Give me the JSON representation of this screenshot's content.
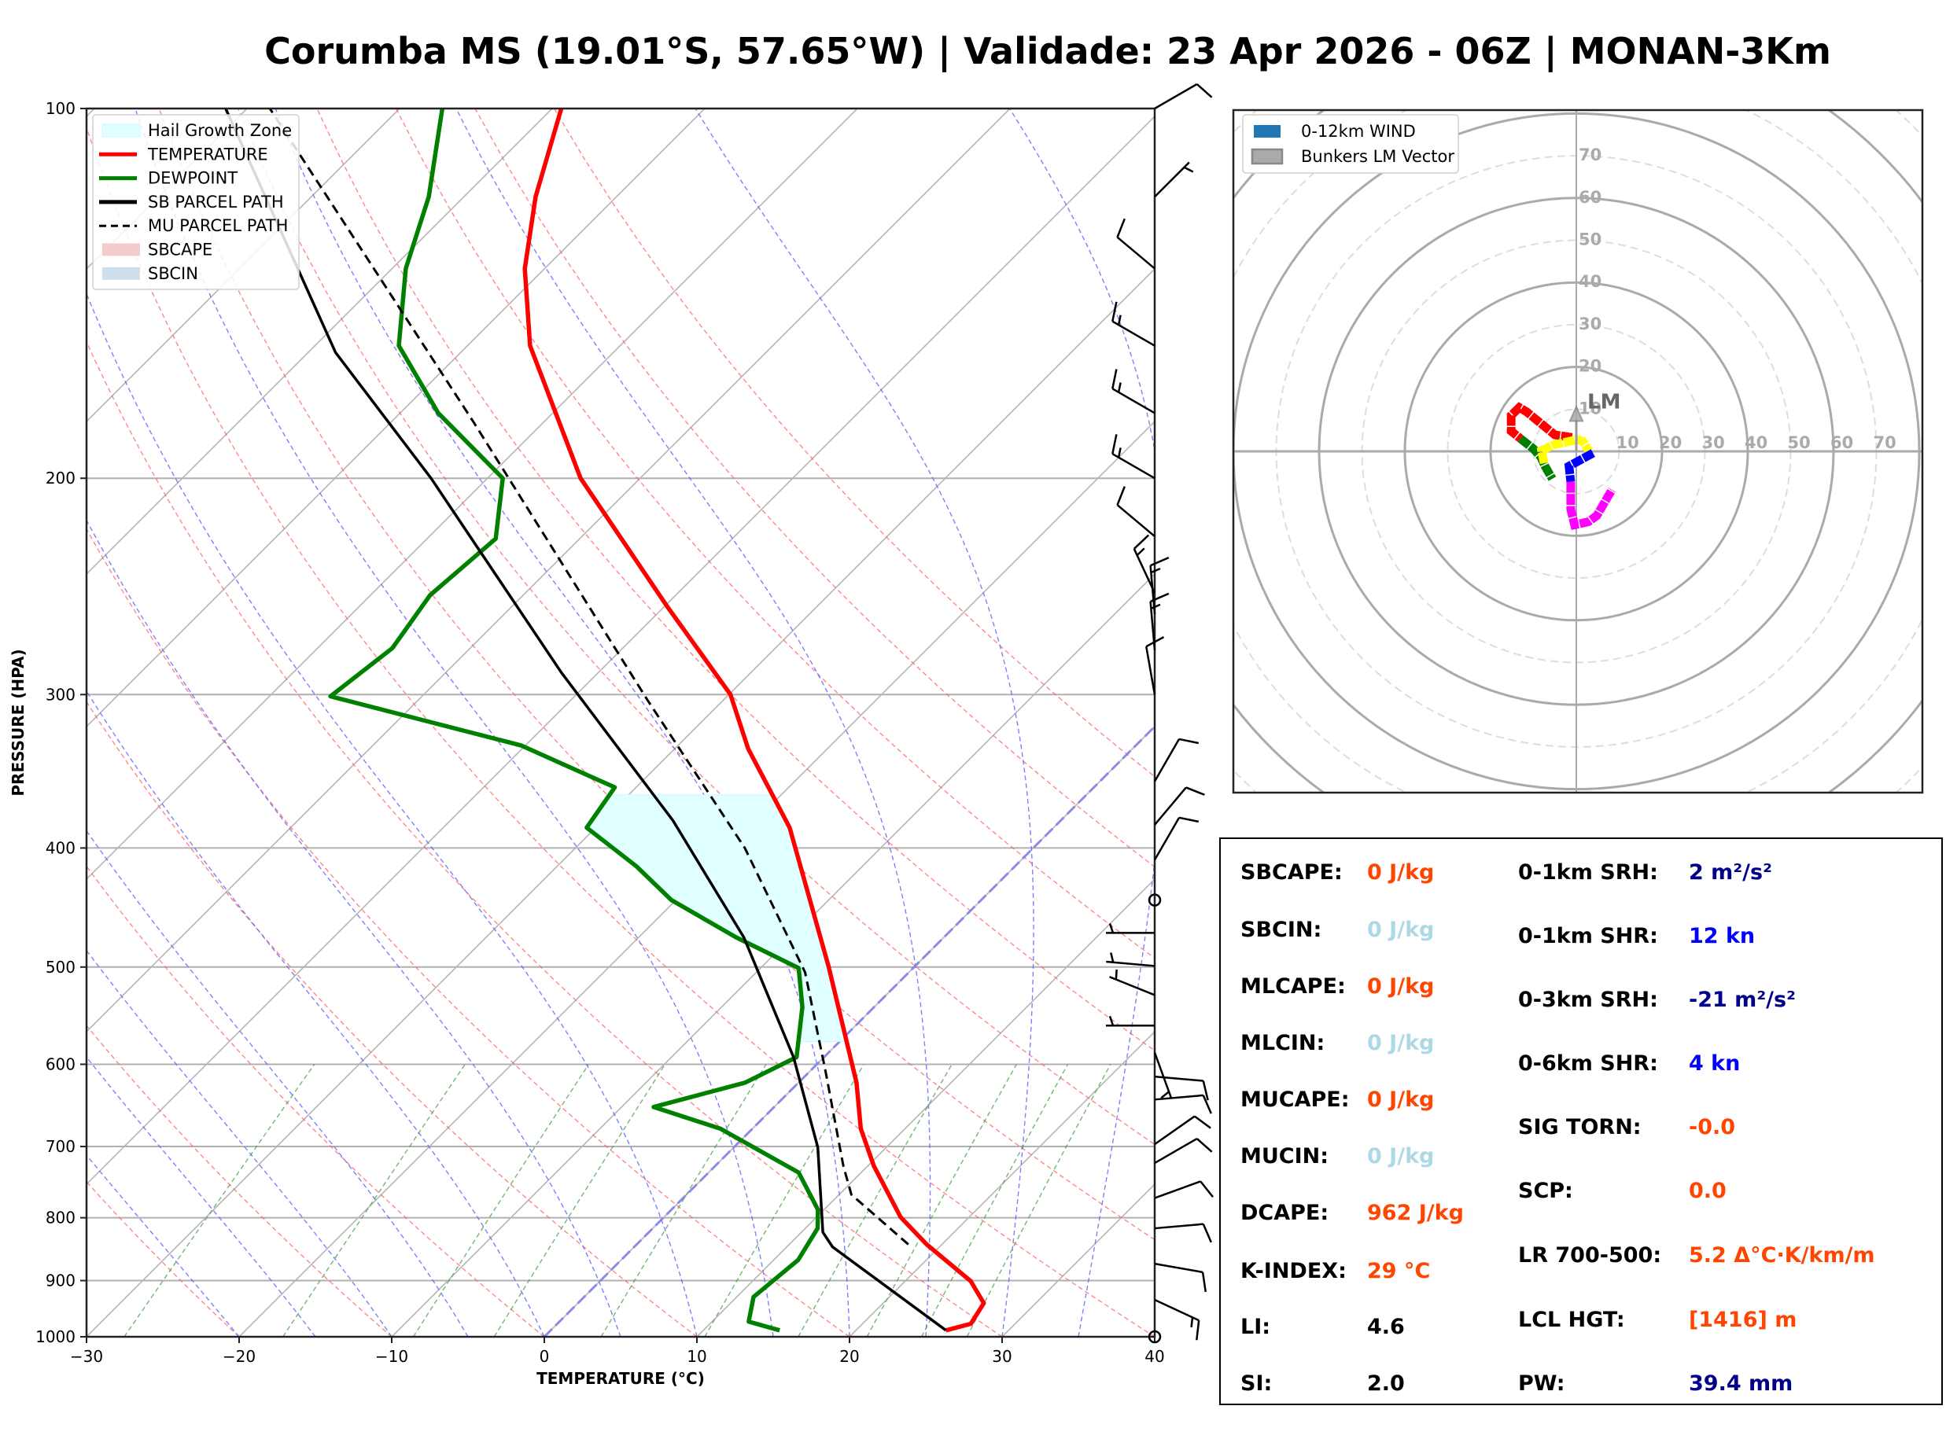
{
  "title": "Corumba MS (19.01°S, 57.65°W) | Validade: 23 Apr 2026 - 06Z | MONAN-3Km",
  "chart_data": [
    {
      "type": "line",
      "name": "skew-t",
      "xlabel": "TEMPERATURE (°C)",
      "ylabel": "PRESSURE (HPA)",
      "xlim": [
        -30,
        40
      ],
      "ylim": [
        1000,
        100
      ],
      "yscale": "log",
      "xticks": [
        -30,
        -20,
        -10,
        0,
        10,
        20,
        30,
        40
      ],
      "xtick_labels": [
        "−30",
        "−20",
        "−10",
        "0",
        "10",
        "20",
        "30",
        "40"
      ],
      "yticks": [
        1000,
        900,
        800,
        700,
        600,
        500,
        400,
        300,
        200,
        100
      ],
      "ytick_labels": [
        "1000",
        "900",
        "800",
        "700",
        "600",
        "500",
        "400",
        "300",
        "200",
        "100"
      ],
      "grid": true,
      "legend_position": "top-left",
      "legend": [
        {
          "label": "Hail Growth Zone",
          "kind": "patch",
          "color": "#e0ffff"
        },
        {
          "label": "TEMPERATURE",
          "kind": "line",
          "color": "#ff0000"
        },
        {
          "label": "DEWPOINT",
          "kind": "line",
          "color": "#008000"
        },
        {
          "label": "SB PARCEL PATH",
          "kind": "line",
          "color": "#000000"
        },
        {
          "label": "MU PARCEL PATH",
          "kind": "dashed",
          "color": "#000000"
        },
        {
          "label": "SBCAPE",
          "kind": "patch",
          "color": "#f4cccc"
        },
        {
          "label": "SBCIN",
          "kind": "patch",
          "color": "#cfe0ec"
        }
      ],
      "series": [
        {
          "name": "TEMPERATURE",
          "color": "#ff0000",
          "p": [
            988,
            976,
            939,
            901,
            841,
            799,
            726,
            677,
            621,
            500,
            385,
            332,
            300,
            254,
            200,
            156,
            135,
            118,
            100
          ],
          "t": [
            25.9,
            27.1,
            26.6,
            24.3,
            19.0,
            15.5,
            10.4,
            7.1,
            3.8,
            -5.6,
            -17.3,
            -25.2,
            -29.9,
            -39.9,
            -53.9,
            -65.9,
            -71.3,
            -75.3,
            -79.4
          ]
        },
        {
          "name": "DEWPOINT",
          "color": "#008000",
          "p": [
            988,
            972,
            928,
            866,
            816,
            788,
            735,
            677,
            650,
            621,
            592,
            539,
            501,
            473,
            441,
            414,
            385,
            357,
            330,
            301,
            275,
            249,
            224,
            200,
            177,
            156,
            135,
            118,
            100
          ],
          "t": [
            15.0,
            12.4,
            11.1,
            11.6,
            10.8,
            9.6,
            5.9,
            -2.1,
            -7.9,
            -3.5,
            -1.8,
            -4.7,
            -7.5,
            -13.6,
            -20.3,
            -24.8,
            -30.6,
            -31.4,
            -40.3,
            -56.0,
            -55.1,
            -56.1,
            -55.5,
            -59.0,
            -67.5,
            -74.5,
            -79.1,
            -82.3,
            -87.2
          ]
        },
        {
          "name": "SB PARCEL PATH",
          "color": "#000000",
          "p": [
            988,
            845,
            822,
            701,
            592,
            473,
            380,
            288,
            200,
            158,
            100
          ],
          "t": [
            25.9,
            13.0,
            11.4,
            5.5,
            -2.0,
            -13.1,
            -25.4,
            -42.4,
            -63.7,
            -78.2,
            -101.4
          ]
        },
        {
          "name": "MU PARCEL PATH",
          "color": "#000000",
          "dashed": true,
          "p": [
            841,
            766,
            726,
            609,
            505,
            400,
            303,
            180,
            100
          ],
          "t": [
            17.8,
            10.8,
            8.4,
            1.1,
            -6.8,
            -18.9,
            -35.0,
            -64.6,
            -98.5
          ]
        }
      ],
      "hail_growth_zone": {
        "p_top": 362,
        "p_bottom": 575
      },
      "wind_barbs": [
        {
          "p": 100,
          "dir": 60,
          "spd": 10
        },
        {
          "p": 118,
          "dir": 45,
          "spd": 5
        },
        {
          "p": 135,
          "dir": 310,
          "spd": 10
        },
        {
          "p": 156,
          "dir": 300,
          "spd": 15
        },
        {
          "p": 177,
          "dir": 300,
          "spd": 15
        },
        {
          "p": 200,
          "dir": 300,
          "spd": 15
        },
        {
          "p": 223,
          "dir": 310,
          "spd": 10
        },
        {
          "p": 248,
          "dir": 335,
          "spd": 15
        },
        {
          "p": 258,
          "dir": 355,
          "spd": 15
        },
        {
          "p": 276,
          "dir": 355,
          "spd": 15
        },
        {
          "p": 300,
          "dir": 350,
          "spd": 10
        },
        {
          "p": 353,
          "dir": 30,
          "spd": 10
        },
        {
          "p": 383,
          "dir": 40,
          "spd": 10
        },
        {
          "p": 409,
          "dir": 30,
          "spd": 10
        },
        {
          "p": 441,
          "dir": 0,
          "spd": 0
        },
        {
          "p": 469,
          "dir": 270,
          "spd": 5
        },
        {
          "p": 499,
          "dir": 275,
          "spd": 5
        },
        {
          "p": 527,
          "dir": 292,
          "spd": 5
        },
        {
          "p": 558,
          "dir": 270,
          "spd": 5
        },
        {
          "p": 587,
          "dir": 160,
          "spd": 5
        },
        {
          "p": 614,
          "dir": 95,
          "spd": 10
        },
        {
          "p": 641,
          "dir": 85,
          "spd": 10
        },
        {
          "p": 697,
          "dir": 55,
          "spd": 10
        },
        {
          "p": 722,
          "dir": 60,
          "spd": 10
        },
        {
          "p": 771,
          "dir": 70,
          "spd": 10
        },
        {
          "p": 816,
          "dir": 85,
          "spd": 10
        },
        {
          "p": 872,
          "dir": 100,
          "spd": 10
        },
        {
          "p": 933,
          "dir": 115,
          "spd": 15
        },
        {
          "p": 1000,
          "dir": 0,
          "spd": 0
        }
      ]
    },
    {
      "type": "scatter",
      "name": "hodograph",
      "legend_position": "top-left",
      "legend": [
        {
          "label": "0-12km WIND",
          "color": "#1f77b4"
        },
        {
          "label": "Bunkers LM Vector",
          "color": "#aaaaaa"
        }
      ],
      "ring_labels": [
        "10",
        "20",
        "30",
        "40",
        "50",
        "60",
        "70"
      ],
      "ring_values": [
        10,
        20,
        30,
        40,
        50,
        60,
        70
      ],
      "lim": [
        -80,
        80
      ],
      "segments": [
        {
          "color": "#ff0000",
          "u": [
            -1,
            -5,
            -11.5,
            -13.3,
            -15.2,
            -15.2,
            -13
          ],
          "v": [
            3.3,
            3.9,
            9.3,
            10.4,
            8.5,
            4.8,
            3
          ]
        },
        {
          "color": "#008000",
          "u": [
            -13,
            -10,
            -8.3,
            -7.2,
            -5.6
          ],
          "v": [
            3,
            0.6,
            -1.3,
            -3.7,
            -6.5
          ]
        },
        {
          "color": "#ffff00",
          "u": [
            -7.5,
            -8.1,
            -5.4,
            0.2,
            1.5,
            3
          ],
          "v": [
            -2.8,
            0.2,
            1.5,
            2.8,
            2.4,
            0
          ]
        },
        {
          "color": "#0000ff",
          "u": [
            3.9,
            -1.7,
            -1.3
          ],
          "v": [
            -0.4,
            -3.5,
            -7.2
          ]
        },
        {
          "color": "#ff00ff",
          "u": [
            -1.3,
            -1.3,
            -0.4,
            2.8,
            4.8,
            8.3
          ],
          "v": [
            -7.2,
            -13.7,
            -17.4,
            -16.7,
            -15.2,
            -9.1
          ]
        }
      ],
      "lm_vector": {
        "label": "LM",
        "u": 0,
        "v": 9.8
      }
    }
  ],
  "params": {
    "left": [
      {
        "label": "SBCAPE:",
        "value": "0 J/kg",
        "color": "#ff4500"
      },
      {
        "label": "SBCIN:",
        "value": "0 J/kg",
        "color": "#add8e6"
      },
      {
        "label": "MLCAPE:",
        "value": "0 J/kg",
        "color": "#ff4500"
      },
      {
        "label": "MLCIN:",
        "value": "0 J/kg",
        "color": "#add8e6"
      },
      {
        "label": "MUCAPE:",
        "value": "0 J/kg",
        "color": "#ff4500"
      },
      {
        "label": "MUCIN:",
        "value": "0 J/kg",
        "color": "#add8e6"
      },
      {
        "label": "DCAPE:",
        "value": "962 J/kg",
        "color": "#ff4500"
      },
      {
        "label": "K-INDEX:",
        "value": "29 °C",
        "color": "#ff4500"
      },
      {
        "label": "LI:",
        "value": "4.6",
        "color": "#000000"
      },
      {
        "label": "SI:",
        "value": "2.0",
        "color": "#000000"
      }
    ],
    "right": [
      {
        "label": "0-1km SRH:",
        "value": "2 m²/s²",
        "color": "#00008b"
      },
      {
        "label": "0-1km SHR:",
        "value": "12 kn",
        "color": "#0000ff"
      },
      {
        "label": "0-3km SRH:",
        "value": "-21 m²/s²",
        "color": "#00008b"
      },
      {
        "label": "0-6km SHR:",
        "value": "4 kn",
        "color": "#0000ff"
      },
      {
        "label": "SIG TORN:",
        "value": "-0.0",
        "color": "#ff4500"
      },
      {
        "label": "SCP:",
        "value": "0.0",
        "color": "#ff4500"
      },
      {
        "label": "LR 700-500:",
        "value": "5.2 Δ°C·K/km/m",
        "color": "#ff4500"
      },
      {
        "label": "LCL HGT:",
        "value": "[1416] m",
        "color": "#ff4500"
      },
      {
        "label": "PW:",
        "value": "39.4 mm",
        "color": "#00008b"
      }
    ]
  }
}
